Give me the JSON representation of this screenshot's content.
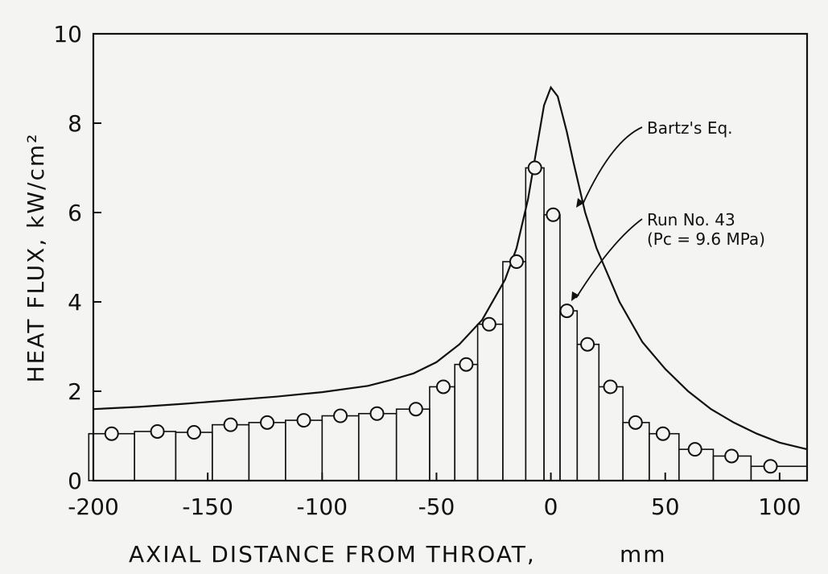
{
  "chart_data": {
    "type": "line",
    "title": "",
    "xlabel": "AXIAL DISTANCE FROM THROAT,",
    "xunit": "mm",
    "ylabel": "HEAT FLUX, kW/cm²",
    "xlim": [
      -200,
      112
    ],
    "ylim": [
      0,
      10
    ],
    "xticks": [
      -200,
      -150,
      -100,
      -50,
      0,
      50,
      100
    ],
    "yticks": [
      0,
      2,
      4,
      6,
      8,
      10
    ],
    "grid": false,
    "series": [
      {
        "name": "Bartz's Eq.",
        "style": "curve",
        "x": [
          -200,
          -180,
          -160,
          -140,
          -120,
          -100,
          -80,
          -70,
          -60,
          -50,
          -40,
          -30,
          -20,
          -15,
          -10,
          -7,
          -5,
          -3,
          0,
          3,
          5,
          7,
          10,
          15,
          20,
          30,
          40,
          50,
          60,
          70,
          80,
          90,
          100,
          112
        ],
        "y": [
          1.6,
          1.65,
          1.72,
          1.8,
          1.88,
          1.98,
          2.12,
          2.25,
          2.4,
          2.65,
          3.05,
          3.6,
          4.5,
          5.2,
          6.3,
          7.2,
          7.8,
          8.4,
          8.8,
          8.6,
          8.2,
          7.8,
          7.1,
          6.0,
          5.2,
          4.0,
          3.1,
          2.5,
          2.0,
          1.6,
          1.3,
          1.05,
          0.85,
          0.7
        ]
      },
      {
        "name": "Run No. 43",
        "condition": "(Pc = 9.6 MPa)",
        "style": "markers-with-steps",
        "x": [
          -192,
          -172,
          -156,
          -140,
          -124,
          -108,
          -92,
          -76,
          -59,
          -47,
          -37,
          -27,
          -15,
          -7,
          1,
          7,
          16,
          26,
          37,
          49,
          63,
          79,
          96
        ],
        "y": [
          1.05,
          1.1,
          1.08,
          1.25,
          1.3,
          1.35,
          1.45,
          1.5,
          1.6,
          2.1,
          2.6,
          3.5,
          4.9,
          7.0,
          5.95,
          3.8,
          3.05,
          2.1,
          1.3,
          1.05,
          0.7,
          0.55,
          0.32
        ]
      }
    ],
    "annotations": [
      {
        "text": "Bartz's Eq.",
        "target": "Bartz's Eq."
      },
      {
        "text": "Run No. 43",
        "target": "Run No. 43"
      },
      {
        "text": "(Pc = 9.6 MPa)",
        "target": "Run No. 43"
      }
    ],
    "colors": {
      "line": "#111111",
      "marker_fill": "#f4f4f2",
      "background": "#f4f4f2"
    }
  }
}
